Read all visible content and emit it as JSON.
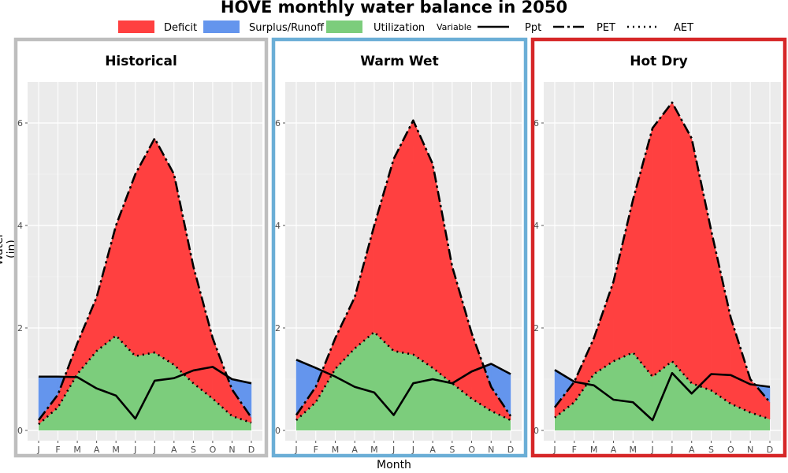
{
  "title": "HOVE monthly water balance in 2050",
  "legend": {
    "fill_items": [
      {
        "label": "Deficit",
        "color": "#ff4040"
      },
      {
        "label": "Surplus/Runoff",
        "color": "#6495ed"
      },
      {
        "label": "Utilization",
        "color": "#7ccd7c"
      }
    ],
    "line_title": "Variable",
    "line_items": [
      {
        "label": "Ppt",
        "style": "solid"
      },
      {
        "label": "PET",
        "style": "dashdot"
      },
      {
        "label": "AET",
        "style": "dotted"
      }
    ]
  },
  "axes": {
    "ylabel": "Water (in)",
    "xlabel": "Month",
    "yticks": [
      "0",
      "2",
      "4",
      "6"
    ],
    "xticks": [
      "J",
      "F",
      "M",
      "A",
      "M",
      "J",
      "J",
      "A",
      "S",
      "O",
      "N",
      "D"
    ]
  },
  "colors": {
    "deficit": "#ff4040",
    "surplus": "#6495ed",
    "utilization": "#7ccd7c",
    "panel_bg": "#ebebeb",
    "grid": "#ffffff"
  },
  "chart_data": [
    {
      "type": "area",
      "title": "Historical",
      "border_color": "#bebebe",
      "months": [
        "J",
        "F",
        "M",
        "A",
        "M",
        "J",
        "J",
        "A",
        "S",
        "O",
        "N",
        "D"
      ],
      "ylim": [
        -0.2,
        6.8
      ],
      "series": [
        {
          "name": "Ppt",
          "values": [
            1.05,
            1.05,
            1.04,
            0.82,
            0.68,
            0.23,
            0.97,
            1.02,
            1.17,
            1.24,
            1.0,
            0.92
          ]
        },
        {
          "name": "PET",
          "values": [
            0.2,
            0.7,
            1.7,
            2.6,
            4.0,
            5.0,
            5.7,
            5.0,
            3.2,
            1.8,
            0.8,
            0.25
          ]
        },
        {
          "name": "AET",
          "values": [
            0.12,
            0.45,
            1.1,
            1.55,
            1.85,
            1.45,
            1.52,
            1.28,
            0.92,
            0.62,
            0.28,
            0.15
          ]
        }
      ]
    },
    {
      "type": "area",
      "title": "Warm Wet",
      "border_color": "#6baed6",
      "months": [
        "J",
        "F",
        "M",
        "A",
        "M",
        "J",
        "J",
        "A",
        "S",
        "O",
        "N",
        "D"
      ],
      "ylim": [
        -0.2,
        6.8
      ],
      "series": [
        {
          "name": "Ppt",
          "values": [
            1.38,
            1.22,
            1.05,
            0.85,
            0.74,
            0.3,
            0.92,
            1.0,
            0.92,
            1.15,
            1.3,
            1.1
          ]
        },
        {
          "name": "PET",
          "values": [
            0.3,
            0.85,
            1.8,
            2.6,
            4.0,
            5.3,
            6.05,
            5.2,
            3.2,
            1.9,
            0.85,
            0.28
          ]
        },
        {
          "name": "AET",
          "values": [
            0.2,
            0.55,
            1.2,
            1.6,
            1.92,
            1.55,
            1.48,
            1.22,
            0.92,
            0.62,
            0.38,
            0.2
          ]
        }
      ]
    },
    {
      "type": "area",
      "title": "Hot Dry",
      "border_color": "#d62728",
      "months": [
        "J",
        "F",
        "M",
        "A",
        "M",
        "J",
        "J",
        "A",
        "S",
        "O",
        "N",
        "D"
      ],
      "ylim": [
        -0.2,
        6.8
      ],
      "series": [
        {
          "name": "Ppt",
          "values": [
            1.18,
            0.95,
            0.88,
            0.6,
            0.55,
            0.2,
            1.12,
            0.72,
            1.1,
            1.08,
            0.9,
            0.85
          ]
        },
        {
          "name": "PET",
          "values": [
            0.45,
            0.95,
            1.8,
            2.9,
            4.5,
            5.9,
            6.4,
            5.7,
            3.9,
            2.2,
            1.0,
            0.55
          ]
        },
        {
          "name": "AET",
          "values": [
            0.25,
            0.55,
            1.1,
            1.35,
            1.52,
            1.05,
            1.35,
            0.92,
            0.78,
            0.52,
            0.35,
            0.22
          ]
        }
      ]
    }
  ]
}
